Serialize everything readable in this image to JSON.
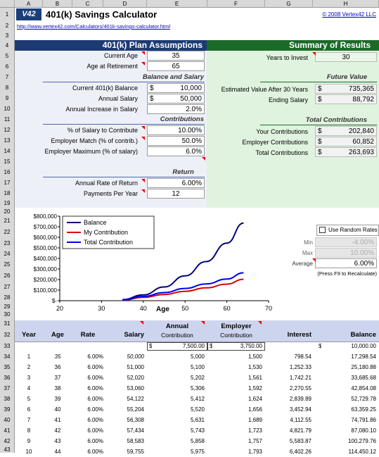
{
  "columns": [
    "A",
    "B",
    "C",
    "D",
    "E",
    "F",
    "G",
    "H"
  ],
  "rows": [
    "1",
    "2",
    "3",
    "4",
    "5",
    "6",
    "7",
    "8",
    "9",
    "10",
    "11",
    "12",
    "13",
    "14",
    "15",
    "16",
    "17",
    "18",
    "19",
    "20",
    "21",
    "22",
    "23",
    "24",
    "25",
    "26",
    "27",
    "28",
    "29",
    "30",
    "31",
    "32",
    "33",
    "34",
    "35",
    "36",
    "37",
    "38",
    "39",
    "40",
    "41",
    "42",
    "43"
  ],
  "header": {
    "logo": "V42",
    "title": "401(k) Savings Calculator",
    "copyright": "© 2008 Vertex42 LLC",
    "url": "http://www.vertex42.com/Calculators/401k-savings-calculator.html"
  },
  "assumptions": {
    "title": "401(k) Plan Assumptions",
    "current_age_label": "Current Age",
    "current_age": "35",
    "retire_age_label": "Age at Retirement",
    "retire_age": "65",
    "bal_section": "Balance and Salary",
    "current_balance_label": "Current 401(k) Balance",
    "current_balance": "10,000",
    "salary_label": "Annual Salary",
    "salary": "50,000",
    "increase_label": "Annual Increase in Salary",
    "increase": "2.0%",
    "contrib_section": "Contributions",
    "pct_contrib_label": "% of Salary to Contribute",
    "pct_contrib": "10.00%",
    "match_label": "Employer Match (% of contrib.)",
    "match": "50.0%",
    "max_label": "Employer Maximum (% of salary)",
    "max": "6.0%",
    "return_section": "Return",
    "rate_label": "Annual Rate of Return",
    "rate": "6.00%",
    "ppy_label": "Payments Per Year",
    "ppy": "12",
    "dollar": "$"
  },
  "summary": {
    "title": "Summary of Results",
    "years_label": "Years to Invest",
    "years": "30",
    "fv_section": "Future Value",
    "est_label": "Estimated Value After 30 Years",
    "est": "735,365",
    "ending_salary_label": "Ending Salary",
    "ending_salary": "88,792",
    "tc_section": "Total Contributions",
    "your_label": "Your Contributions",
    "your": "202,840",
    "employer_label": "Employer Contributions",
    "employer": "60,852",
    "total_label": "Total Contributions",
    "total": "263,693",
    "dollar": "$"
  },
  "random": {
    "checkbox_label": "Use Random Rates",
    "min_label": "Min",
    "min": "-4.00%",
    "max_label": "Max",
    "max": "10.00%",
    "avg_label": "Average",
    "avg": "6.00%",
    "note": "(Press F9 to Recalculate)"
  },
  "chart_data": {
    "type": "line",
    "xlabel": "Age",
    "ylabel": "",
    "xlim": [
      20,
      70
    ],
    "ylim": [
      0,
      800000
    ],
    "x_ticks": [
      "20",
      "30",
      "40",
      "50",
      "60",
      "70"
    ],
    "y_ticks": [
      "$-",
      "$100,000",
      "$200,000",
      "$300,000",
      "$400,000",
      "$500,000",
      "$600,000",
      "$700,000",
      "$800,000"
    ],
    "legend_position": "top-left",
    "series": [
      {
        "name": "Balance",
        "color": "#000080",
        "x": [
          35,
          40,
          45,
          50,
          55,
          60,
          64
        ],
        "y": [
          10000,
          55000,
          130000,
          235000,
          370000,
          545000,
          735365
        ]
      },
      {
        "name": "My Contribution",
        "color": "#e00000",
        "x": [
          35,
          40,
          45,
          50,
          55,
          60,
          64
        ],
        "y": [
          5000,
          31000,
          59000,
          89000,
          121000,
          157000,
          202840
        ]
      },
      {
        "name": "Total Contribution",
        "color": "#0000ee",
        "x": [
          35,
          40,
          45,
          50,
          55,
          60,
          64
        ],
        "y": [
          6500,
          40000,
          77000,
          116000,
          158000,
          205000,
          263693
        ]
      }
    ]
  },
  "table": {
    "headers": [
      "Year",
      "Age",
      "Rate",
      "Salary",
      "Annual",
      "Contribution",
      "Employer",
      "Contribution",
      "Interest",
      "Balance"
    ],
    "start": {
      "dollar": "$",
      "annual": "7,500.00",
      "employer": "3,750.00",
      "balance": "10,000.00"
    },
    "rows": [
      [
        "1",
        "35",
        "6.00%",
        "50,000",
        "5,000",
        "1,500",
        "798.54",
        "17,298.54"
      ],
      [
        "2",
        "36",
        "6.00%",
        "51,000",
        "5,100",
        "1,530",
        "1,252.33",
        "25,180.88"
      ],
      [
        "3",
        "37",
        "6.00%",
        "52,020",
        "5,202",
        "1,561",
        "1,742.21",
        "33,685.68"
      ],
      [
        "4",
        "38",
        "6.00%",
        "53,060",
        "5,306",
        "1,592",
        "2,270.55",
        "42,854.08"
      ],
      [
        "5",
        "39",
        "6.00%",
        "54,122",
        "5,412",
        "1,624",
        "2,839.89",
        "52,729.78"
      ],
      [
        "6",
        "40",
        "6.00%",
        "55,204",
        "5,520",
        "1,656",
        "3,452.94",
        "63,359.25"
      ],
      [
        "7",
        "41",
        "6.00%",
        "56,308",
        "5,631",
        "1,689",
        "4,112.55",
        "74,791.86"
      ],
      [
        "8",
        "42",
        "6.00%",
        "57,434",
        "5,743",
        "1,723",
        "4,821.79",
        "87,080.10"
      ],
      [
        "9",
        "43",
        "6.00%",
        "58,583",
        "5,858",
        "1,757",
        "5,583.87",
        "100,279.76"
      ],
      [
        "10",
        "44",
        "6.00%",
        "59,755",
        "5,975",
        "1,793",
        "6,402.26",
        "114,450.12"
      ]
    ]
  }
}
